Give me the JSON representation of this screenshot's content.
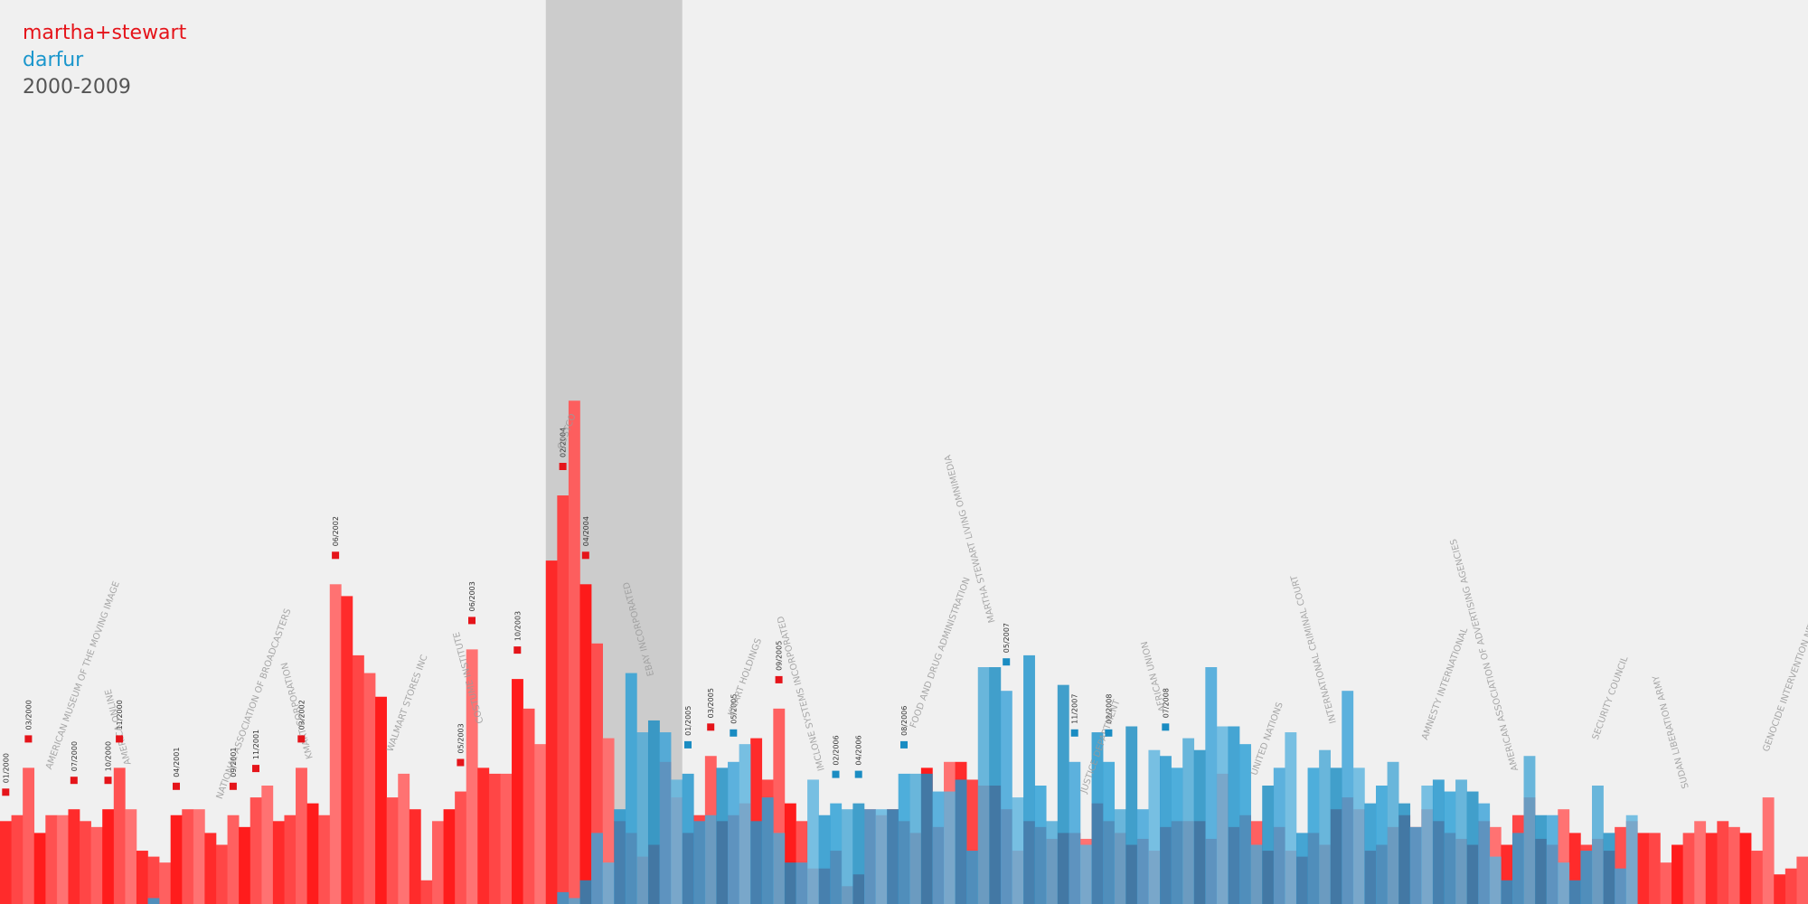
{
  "legend": {
    "series1": "martha+stewart",
    "series2": "darfur",
    "period": "2000-2009"
  },
  "colors": {
    "background": "#f0f0f0",
    "series1": "#ff2b2b",
    "series2": "#1f94cc",
    "highlight": "#cccccc",
    "period_text": "#555555"
  },
  "chart_data": {
    "type": "bar",
    "x_range": [
      "2000-01",
      "2009-12"
    ],
    "highlight_range": [
      "2004-01",
      "2004-12"
    ],
    "ylim": [
      0,
      100
    ],
    "series": [
      {
        "name": "martha+stewart",
        "values": [
          14,
          15,
          23,
          12,
          15,
          15,
          16,
          14,
          13,
          16,
          23,
          16,
          9,
          8,
          7,
          15,
          16,
          16,
          12,
          10,
          15,
          13,
          18,
          20,
          14,
          15,
          23,
          17,
          15,
          54,
          52,
          42,
          39,
          35,
          18,
          22,
          16,
          4,
          14,
          16,
          19,
          43,
          23,
          22,
          22,
          38,
          33,
          27,
          58,
          69,
          85,
          54,
          44,
          28,
          14,
          12,
          8,
          10,
          24,
          18,
          12,
          15,
          25,
          14,
          15,
          17,
          28,
          21,
          33,
          17,
          14,
          6,
          6,
          9,
          3,
          5,
          16,
          15,
          16,
          14,
          12,
          23,
          13,
          24,
          24,
          21,
          20,
          20,
          16,
          9,
          14,
          13,
          11,
          12,
          12,
          11,
          17,
          14,
          12,
          10,
          11,
          9,
          13,
          14,
          14,
          14,
          11,
          22,
          13,
          15,
          14,
          9,
          13,
          9,
          8,
          12,
          10,
          16,
          18,
          16,
          9,
          10,
          13,
          15,
          13,
          16,
          14,
          12,
          11,
          10,
          14,
          13,
          10,
          15,
          18,
          11,
          10,
          16,
          12,
          10,
          11,
          9,
          13,
          14,
          12,
          12,
          7,
          10,
          12,
          14,
          12,
          14,
          13,
          12,
          9,
          18,
          5,
          6,
          8
        ]
      },
      {
        "name": "darfur",
        "values": [
          0,
          0,
          0,
          0,
          0,
          0,
          0,
          0,
          0,
          0,
          0,
          0,
          0,
          1,
          0,
          0,
          0,
          0,
          0,
          0,
          0,
          0,
          0,
          0,
          0,
          0,
          0,
          0,
          0,
          0,
          0,
          0,
          0,
          0,
          0,
          0,
          0,
          0,
          0,
          0,
          0,
          0,
          0,
          0,
          0,
          0,
          0,
          0,
          0,
          2,
          1,
          4,
          12,
          7,
          16,
          39,
          29,
          31,
          29,
          21,
          22,
          14,
          15,
          23,
          24,
          27,
          14,
          18,
          12,
          7,
          7,
          21,
          15,
          17,
          16,
          17,
          16,
          16,
          16,
          22,
          22,
          22,
          19,
          19,
          21,
          9,
          40,
          40,
          36,
          18,
          42,
          20,
          14,
          37,
          24,
          10,
          29,
          24,
          16,
          30,
          16,
          26,
          25,
          23,
          28,
          26,
          40,
          30,
          30,
          27,
          10,
          20,
          23,
          29,
          12,
          23,
          26,
          23,
          36,
          23,
          17,
          20,
          24,
          17,
          13,
          20,
          21,
          19,
          21,
          19,
          17,
          8,
          4,
          12,
          25,
          15,
          15,
          7,
          4,
          9,
          20,
          12,
          6,
          15
        ]
      }
    ]
  },
  "labels": [
    {
      "text": "01/2000",
      "color": "dark"
    },
    {
      "text": "03/2000",
      "color": "dark"
    },
    {
      "text": "07/2000",
      "color": "dark"
    },
    {
      "text": "10/2000",
      "color": "dark"
    },
    {
      "text": "11/2000",
      "color": "dark"
    },
    {
      "text": "04/2001",
      "color": "dark"
    },
    {
      "text": "09/2001",
      "color": "dark"
    },
    {
      "text": "11/2001",
      "color": "dark"
    },
    {
      "text": "03/2002",
      "color": "dark"
    },
    {
      "text": "06/2002",
      "color": "dark"
    },
    {
      "text": "05/2003",
      "color": "dark"
    },
    {
      "text": "06/2003",
      "color": "dark"
    },
    {
      "text": "10/2003",
      "color": "dark"
    },
    {
      "text": "02/2004",
      "color": "dark"
    },
    {
      "text": "04/2004",
      "color": "dark"
    },
    {
      "text": "01/2005",
      "color": "dark"
    },
    {
      "text": "03/2005",
      "color": "dark"
    },
    {
      "text": "05/2005",
      "color": "dark"
    },
    {
      "text": "09/2005",
      "color": "dark"
    },
    {
      "text": "02/2006",
      "color": "dark"
    },
    {
      "text": "04/2006",
      "color": "dark"
    },
    {
      "text": "08/2006",
      "color": "dark"
    },
    {
      "text": "05/2007",
      "color": "dark"
    },
    {
      "text": "11/2007",
      "color": "dark"
    },
    {
      "text": "02/2008",
      "color": "dark"
    },
    {
      "text": "07/2008",
      "color": "dark"
    },
    {
      "text": "AMERICAN MUSEUM OF THE MOVING IMAGE",
      "color": "light"
    },
    {
      "text": "AMERICA ONLINE",
      "color": "light"
    },
    {
      "text": "NATIONAL ASSOCIATION OF BROADCASTERS",
      "color": "light"
    },
    {
      "text": "KMART CORPORATION",
      "color": "light"
    },
    {
      "text": "WALMART STORES INC",
      "color": "light"
    },
    {
      "text": "COSTUME INSTITUTE",
      "color": "light"
    },
    {
      "text": "COSTCO",
      "color": "light"
    },
    {
      "text": "EBAY INCORPORATED",
      "color": "light"
    },
    {
      "text": "KMART HOLDINGS",
      "color": "light"
    },
    {
      "text": "IMCLONE SYSTEMS INCORPORATED",
      "color": "light"
    },
    {
      "text": "FOOD AND DRUG ADMINISTRATION",
      "color": "light"
    },
    {
      "text": "MARTHA STEWART LIVING OMNIMEDIA",
      "color": "light"
    },
    {
      "text": "JUSTICE DEPARTMENT",
      "color": "light"
    },
    {
      "text": "AFRICAN UNION",
      "color": "light"
    },
    {
      "text": "UNITED NATIONS",
      "color": "light"
    },
    {
      "text": "INTERNATIONAL CRIMINAL COURT",
      "color": "light"
    },
    {
      "text": "AMNESTY INTERNATIONAL",
      "color": "light"
    },
    {
      "text": "AMERICAN ASSOCIATION OF ADVERTISING AGENCIES",
      "color": "light"
    },
    {
      "text": "SECURITY COUNCIL",
      "color": "light"
    },
    {
      "text": "SUDAN LIBERATION ARMY",
      "color": "light"
    },
    {
      "text": "GENOCIDE INTERVENTION NETWORK",
      "color": "light"
    }
  ]
}
